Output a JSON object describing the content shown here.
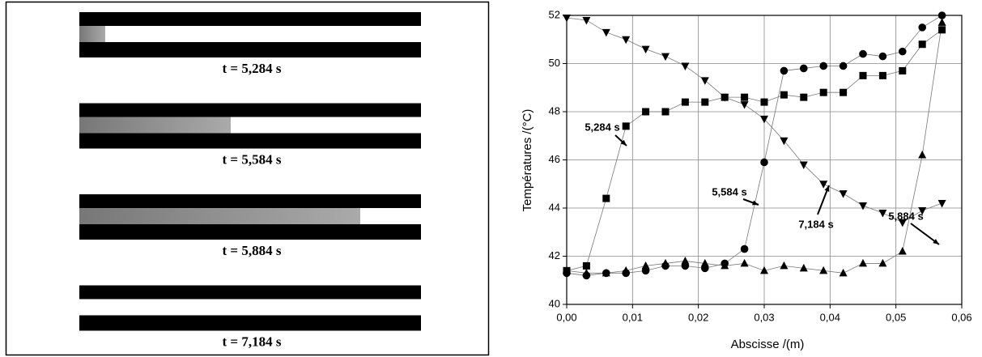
{
  "images": [
    {
      "caption": "t = 5,284 s"
    },
    {
      "caption": "t = 5,584 s"
    },
    {
      "caption": "t = 5,884 s"
    },
    {
      "caption": "t = 7,184 s"
    }
  ],
  "chart_data": {
    "type": "scatter",
    "x_label": "Abscisse   /(m)",
    "y_label": "Températures   /(°C)",
    "x": [
      0,
      0.003,
      0.006,
      0.009,
      0.012,
      0.015,
      0.018,
      0.021,
      0.024,
      0.027,
      0.03,
      0.033,
      0.036,
      0.039,
      0.042,
      0.045,
      0.048,
      0.051,
      0.054,
      0.057
    ],
    "series": [
      {
        "marker": "square",
        "color": "#000000",
        "values": [
          41.4,
          41.6,
          44.4,
          47.4,
          48.0,
          48.0,
          48.4,
          48.4,
          48.6,
          48.6,
          48.4,
          48.7,
          48.6,
          48.8,
          48.8,
          49.5,
          49.5,
          49.7,
          50.8,
          51.4
        ]
      },
      {
        "marker": "circle",
        "color": "#000000",
        "values": [
          41.3,
          41.2,
          41.3,
          41.3,
          41.4,
          41.6,
          41.6,
          41.5,
          41.7,
          42.3,
          45.9,
          49.7,
          49.8,
          49.9,
          49.9,
          50.4,
          50.3,
          50.5,
          51.5,
          52.0
        ]
      },
      {
        "marker": "triangle-up",
        "color": "#000000",
        "values": [
          41.4,
          41.3,
          41.3,
          41.4,
          41.6,
          41.7,
          41.8,
          41.7,
          41.6,
          41.7,
          41.4,
          41.6,
          41.5,
          41.4,
          41.3,
          41.7,
          41.7,
          42.2,
          46.2,
          51.7
        ]
      },
      {
        "marker": "triangle-down",
        "color": "#000000",
        "values": [
          51.9,
          51.8,
          51.3,
          51.0,
          50.6,
          50.3,
          49.9,
          49.3,
          48.6,
          48.3,
          47.7,
          46.8,
          45.8,
          45.0,
          44.6,
          44.1,
          43.8,
          43.4,
          43.9,
          44.2
        ]
      }
    ],
    "annotations": [
      "5,284 s",
      "5,584 s",
      "5,884 s",
      "7,184 s"
    ],
    "xlim": [
      0,
      0.06
    ],
    "xticks": [
      {
        "value": 0,
        "label": "0,00"
      },
      {
        "value": 0.01,
        "label": "0,01"
      },
      {
        "value": 0.02,
        "label": "0,02"
      },
      {
        "value": 0.03,
        "label": "0,03"
      },
      {
        "value": 0.04,
        "label": "0,04"
      },
      {
        "value": 0.05,
        "label": "0,05"
      },
      {
        "value": 0.06,
        "label": "0,06"
      }
    ],
    "ylim": [
      40,
      52
    ],
    "yticks": [
      40,
      42,
      44,
      46,
      48,
      50,
      52
    ],
    "grid": true
  }
}
